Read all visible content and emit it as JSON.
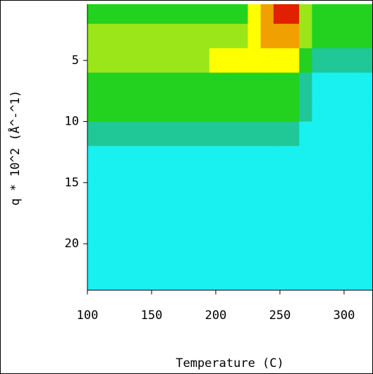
{
  "chart_data": {
    "type": "heatmap",
    "xlabel": "Temperature (C)",
    "ylabel": "q * 10^2 (Å^-^1)",
    "x": [
      100,
      110,
      120,
      130,
      140,
      150,
      160,
      170,
      180,
      190,
      200,
      210,
      220,
      230,
      240,
      250,
      260,
      270,
      280,
      290,
      300,
      310,
      320
    ],
    "y": [
      1,
      3,
      5,
      7,
      9,
      11,
      13,
      15,
      17,
      19,
      21,
      23
    ],
    "values": [
      [
        2,
        2,
        2,
        2,
        2,
        2,
        2,
        2,
        2,
        2,
        2,
        2,
        2,
        4,
        5,
        6,
        6,
        3,
        2,
        2,
        2,
        2,
        2
      ],
      [
        3,
        3,
        3,
        3,
        3,
        3,
        3,
        3,
        3,
        3,
        3,
        3,
        3,
        4,
        5,
        5,
        5,
        3,
        2,
        2,
        2,
        2,
        2
      ],
      [
        3,
        3,
        3,
        3,
        3,
        3,
        3,
        3,
        3,
        3,
        4,
        4,
        4,
        4,
        4,
        4,
        4,
        2,
        1,
        1,
        1,
        1,
        1
      ],
      [
        2,
        2,
        2,
        2,
        2,
        2,
        2,
        2,
        2,
        2,
        2,
        2,
        2,
        2,
        2,
        2,
        2,
        1,
        0,
        0,
        0,
        0,
        0
      ],
      [
        2,
        2,
        2,
        2,
        2,
        2,
        2,
        2,
        2,
        2,
        2,
        2,
        2,
        2,
        2,
        2,
        2,
        1,
        0,
        0,
        0,
        0,
        0
      ],
      [
        1,
        1,
        1,
        1,
        1,
        1,
        1,
        1,
        1,
        1,
        1,
        1,
        1,
        1,
        1,
        1,
        1,
        0,
        0,
        0,
        0,
        0,
        0
      ],
      [
        0,
        0,
        0,
        0,
        0,
        0,
        0,
        0,
        0,
        0,
        0,
        0,
        0,
        0,
        0,
        0,
        0,
        0,
        0,
        0,
        0,
        0,
        0
      ],
      [
        0,
        0,
        0,
        0,
        0,
        0,
        0,
        0,
        0,
        0,
        0,
        0,
        0,
        0,
        0,
        0,
        0,
        0,
        0,
        0,
        0,
        0,
        0
      ],
      [
        0,
        0,
        0,
        0,
        0,
        0,
        0,
        0,
        0,
        0,
        0,
        0,
        0,
        0,
        0,
        0,
        0,
        0,
        0,
        0,
        0,
        0,
        0
      ],
      [
        0,
        0,
        0,
        0,
        0,
        0,
        0,
        0,
        0,
        0,
        0,
        0,
        0,
        0,
        0,
        0,
        0,
        0,
        0,
        0,
        0,
        0,
        0
      ],
      [
        0,
        0,
        0,
        0,
        0,
        0,
        0,
        0,
        0,
        0,
        0,
        0,
        0,
        0,
        0,
        0,
        0,
        0,
        0,
        0,
        0,
        0,
        0
      ],
      [
        0,
        0,
        0,
        0,
        0,
        0,
        0,
        0,
        0,
        0,
        0,
        0,
        0,
        0,
        0,
        0,
        0,
        0,
        0,
        0,
        0,
        0,
        0
      ]
    ],
    "colors": [
      "#19f0f0",
      "#1fc896",
      "#22d21e",
      "#9be619",
      "#ffff00",
      "#f0a000",
      "#e02000"
    ],
    "xlim": [
      100,
      322
    ],
    "ylim": [
      0.4,
      23.8
    ],
    "y_inverted": true,
    "xticks": [
      100,
      150,
      200,
      250,
      300
    ],
    "yticks": [
      5,
      10,
      15,
      20
    ]
  }
}
